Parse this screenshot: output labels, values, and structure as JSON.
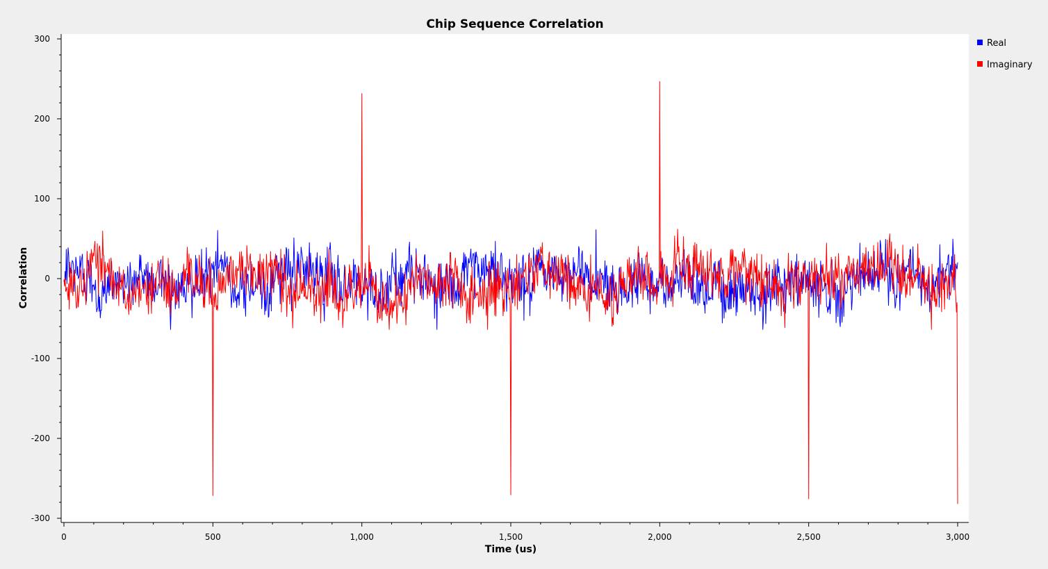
{
  "chart_data": {
    "type": "line",
    "title": "Chip Sequence Correlation",
    "xlabel": "Time (us)",
    "ylabel": "Correlation",
    "xlim": [
      0,
      3000
    ],
    "ylim": [
      -300,
      300
    ],
    "x_ticks": [
      0,
      500,
      1000,
      1500,
      2000,
      2500,
      3000
    ],
    "x_tick_labels": [
      "0",
      "500",
      "1,000",
      "1,500",
      "2,000",
      "2,500",
      "3,000"
    ],
    "y_ticks": [
      300,
      200,
      100,
      0,
      -100,
      -200,
      -300
    ],
    "y_tick_labels": [
      "300",
      "200",
      "100",
      "0",
      "-100",
      "-200",
      "-300"
    ],
    "grid": false,
    "legend_position": "right",
    "sample_interval_us": 2,
    "noise_amplitude": 30,
    "series": [
      {
        "name": "Real",
        "color": "#0000ff",
        "peaks": []
      },
      {
        "name": "Imaginary",
        "color": "#ff0000",
        "peaks": [
          {
            "x": 500,
            "y": -272
          },
          {
            "x": 1000,
            "y": 232
          },
          {
            "x": 1500,
            "y": -271
          },
          {
            "x": 2000,
            "y": 247
          },
          {
            "x": 2500,
            "y": -276
          },
          {
            "x": 3000,
            "y": -282
          }
        ]
      }
    ]
  }
}
